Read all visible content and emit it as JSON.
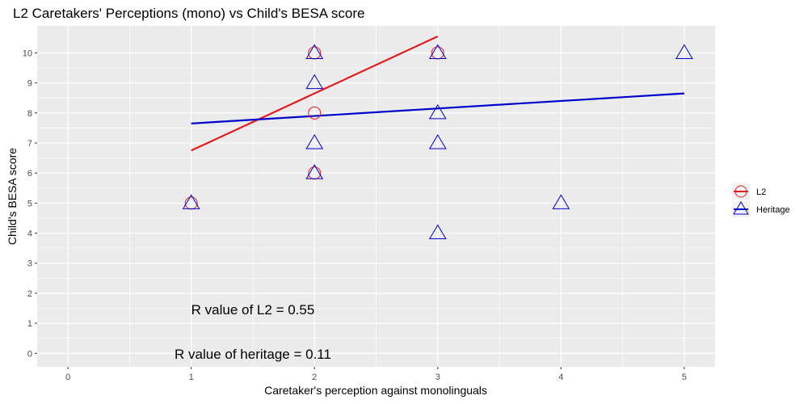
{
  "chart_data": {
    "type": "scatter",
    "title": "L2 Caretakers' Perceptions (mono) vs Child's BESA score",
    "xlabel": "Caretaker's perception against monolinguals",
    "ylabel": "Child's BESA score",
    "xlim": [
      -0.25,
      5.25
    ],
    "ylim": [
      -0.45,
      10.9
    ],
    "x_ticks": [
      0,
      1,
      2,
      3,
      4,
      5
    ],
    "x_tick_labels": [
      "0",
      "1",
      "2",
      "3",
      "4",
      "5"
    ],
    "y_ticks": [
      0,
      1,
      2,
      3,
      4,
      5,
      6,
      7,
      8,
      9,
      10
    ],
    "y_tick_labels": [
      "0",
      "1",
      "2",
      "3",
      "4",
      "5",
      "6",
      "7",
      "8",
      "9",
      "10"
    ],
    "grid": true,
    "series": [
      {
        "name": "L2",
        "color": "#e41a1c",
        "marker": "circle",
        "points": [
          {
            "x": 1,
            "y": 5
          },
          {
            "x": 2,
            "y": 10
          },
          {
            "x": 2,
            "y": 8
          },
          {
            "x": 2,
            "y": 6
          },
          {
            "x": 3,
            "y": 10
          }
        ],
        "fit": {
          "x": [
            1,
            3
          ],
          "y": [
            6.75,
            10.55
          ]
        }
      },
      {
        "name": "Heritage",
        "color": "#0000cc",
        "marker": "triangle",
        "points": [
          {
            "x": 1,
            "y": 5
          },
          {
            "x": 2,
            "y": 10
          },
          {
            "x": 2,
            "y": 9
          },
          {
            "x": 2,
            "y": 7
          },
          {
            "x": 2,
            "y": 6
          },
          {
            "x": 3,
            "y": 10
          },
          {
            "x": 3,
            "y": 8
          },
          {
            "x": 3,
            "y": 7
          },
          {
            "x": 3,
            "y": 4
          },
          {
            "x": 4,
            "y": 5
          },
          {
            "x": 5,
            "y": 10
          }
        ],
        "fit": {
          "x": [
            1,
            5
          ],
          "y": [
            7.65,
            8.65
          ]
        }
      }
    ],
    "annotations": [
      {
        "text": "R value of L2 =  0.55",
        "x": 1.5,
        "y": 1.45
      },
      {
        "text": "R value of heritage =  0.11",
        "x": 1.5,
        "y": -0.03
      }
    ],
    "legend": {
      "position": "right",
      "entries": [
        "L2",
        "Heritage"
      ]
    },
    "colors": {
      "panel_background": "#ebebeb",
      "grid": "#ffffff",
      "l2": "#e41a1c",
      "heritage": "#0000cc",
      "tick_text": "#4d4d4d"
    }
  }
}
